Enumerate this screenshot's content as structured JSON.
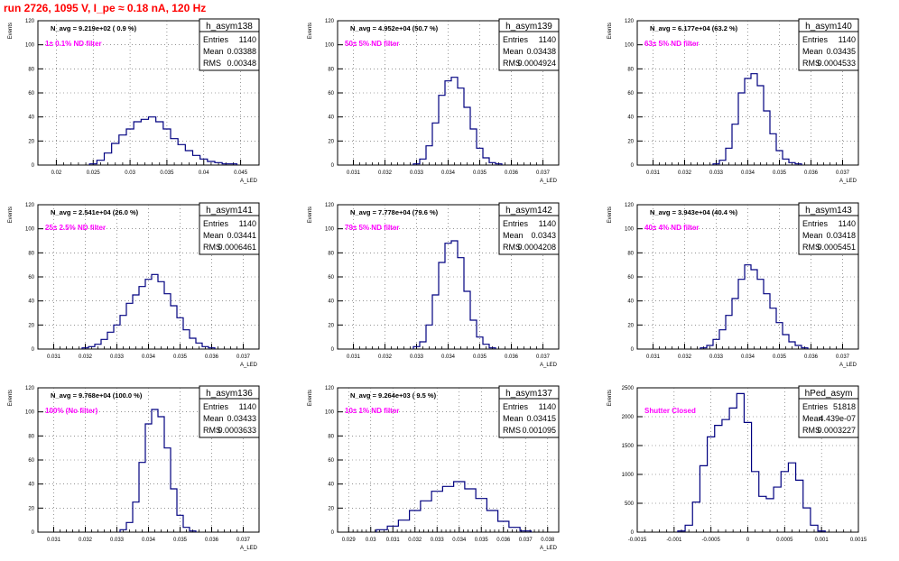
{
  "title": "run 2726,  1095 V, I_pe ≈ 0.18 nA, 120 Hz",
  "colors": {
    "title": "#ff0000",
    "line": "#000080",
    "note": "#ff00ff"
  },
  "chart_data": [
    {
      "type": "histogram",
      "hist_name": "h_asym138",
      "stats": {
        "entries": "1140",
        "mean": "0.03388",
        "rms": "0.00348"
      },
      "navg": "N_avg = 9.219e+02 ( 0.9 %)",
      "note": "1± 0.1% ND filter",
      "xlabel": "A_LED",
      "ylabel": "Events",
      "xlim": [
        0.0175,
        0.0475
      ],
      "ylim": [
        0,
        120
      ],
      "xticks": [
        "0.02",
        "0.025",
        "0.03",
        "0.035",
        "0.04",
        "0.045"
      ],
      "yticks": [
        "0",
        "20",
        "40",
        "60",
        "80",
        "100",
        "120"
      ],
      "grid": true,
      "x": [
        0.025,
        0.026,
        0.027,
        0.028,
        0.029,
        0.03,
        0.031,
        0.032,
        0.033,
        0.034,
        0.035,
        0.036,
        0.037,
        0.038,
        0.039,
        0.04,
        0.041,
        0.042,
        0.043,
        0.044
      ],
      "values": [
        1,
        4,
        10,
        18,
        25,
        30,
        36,
        38,
        40,
        36,
        30,
        22,
        17,
        12,
        8,
        5,
        3,
        2,
        1,
        1
      ]
    },
    {
      "type": "histogram",
      "hist_name": "h_asym139",
      "stats": {
        "entries": "1140",
        "mean": "0.03438",
        "rms": "0.0004924"
      },
      "navg": "N_avg = 4.952e+04 (50.7 %)",
      "note": "50± 5% ND filter",
      "xlabel": "A_LED",
      "ylabel": "Events",
      "xlim": [
        0.0305,
        0.0375
      ],
      "ylim": [
        0,
        120
      ],
      "xticks": [
        "0.031",
        "0.032",
        "0.033",
        "0.034",
        "0.035",
        "0.036",
        "0.037"
      ],
      "yticks": [
        "0",
        "20",
        "40",
        "60",
        "80",
        "100",
        "120"
      ],
      "grid": true,
      "x": [
        0.033,
        0.0332,
        0.0334,
        0.0336,
        0.0338,
        0.034,
        0.0342,
        0.0344,
        0.0346,
        0.0348,
        0.035,
        0.0352,
        0.0354,
        0.0356
      ],
      "values": [
        1,
        5,
        16,
        35,
        58,
        70,
        73,
        64,
        48,
        30,
        14,
        6,
        2,
        1
      ]
    },
    {
      "type": "histogram",
      "hist_name": "h_asym140",
      "stats": {
        "entries": "1140",
        "mean": "0.03435",
        "rms": "0.0004533"
      },
      "navg": "N_avg = 6.177e+04 (63.2 %)",
      "note": "63± 5% ND filter",
      "xlabel": "A_LED",
      "ylabel": "Events",
      "xlim": [
        0.0305,
        0.0375
      ],
      "ylim": [
        0,
        120
      ],
      "xticks": [
        "0.031",
        "0.032",
        "0.033",
        "0.034",
        "0.035",
        "0.036",
        "0.037"
      ],
      "yticks": [
        "0",
        "20",
        "40",
        "60",
        "80",
        "100",
        "120"
      ],
      "grid": true,
      "x": [
        0.033,
        0.0332,
        0.0334,
        0.0336,
        0.0338,
        0.034,
        0.0342,
        0.0344,
        0.0346,
        0.0348,
        0.035,
        0.0352,
        0.0354,
        0.0356
      ],
      "values": [
        1,
        4,
        14,
        34,
        60,
        72,
        76,
        66,
        45,
        26,
        12,
        5,
        2,
        1
      ]
    },
    {
      "type": "histogram",
      "hist_name": "h_asym141",
      "stats": {
        "entries": "1140",
        "mean": "0.03441",
        "rms": "0.0006461"
      },
      "navg": "N_avg = 2.541e+04 (26.0 %)",
      "note": "25± 2.5% ND filter",
      "xlabel": "A_LED",
      "ylabel": "Events",
      "xlim": [
        0.0305,
        0.0375
      ],
      "ylim": [
        0,
        120
      ],
      "xticks": [
        "0.031",
        "0.032",
        "0.033",
        "0.034",
        "0.035",
        "0.036",
        "0.037"
      ],
      "yticks": [
        "0",
        "20",
        "40",
        "60",
        "80",
        "100",
        "120"
      ],
      "grid": true,
      "x": [
        0.032,
        0.0322,
        0.0324,
        0.0326,
        0.0328,
        0.033,
        0.0332,
        0.0334,
        0.0336,
        0.0338,
        0.034,
        0.0342,
        0.0344,
        0.0346,
        0.0348,
        0.035,
        0.0352,
        0.0354,
        0.0356,
        0.0358,
        0.036
      ],
      "values": [
        1,
        2,
        4,
        8,
        14,
        20,
        28,
        38,
        45,
        52,
        58,
        62,
        56,
        46,
        36,
        26,
        16,
        9,
        5,
        2,
        1
      ]
    },
    {
      "type": "histogram",
      "hist_name": "h_asym142",
      "stats": {
        "entries": "1140",
        "mean": "0.0343",
        "rms": "0.0004208"
      },
      "navg": "N_avg = 7.778e+04 (79.6 %)",
      "note": "79± 5% ND filter",
      "xlabel": "A_LED",
      "ylabel": "Events",
      "xlim": [
        0.0305,
        0.0375
      ],
      "ylim": [
        0,
        120
      ],
      "xticks": [
        "0.031",
        "0.032",
        "0.033",
        "0.034",
        "0.035",
        "0.036",
        "0.037"
      ],
      "yticks": [
        "0",
        "20",
        "40",
        "60",
        "80",
        "100",
        "120"
      ],
      "grid": true,
      "x": [
        0.033,
        0.0332,
        0.0334,
        0.0336,
        0.0338,
        0.034,
        0.0342,
        0.0344,
        0.0346,
        0.0348,
        0.035,
        0.0352,
        0.0354
      ],
      "values": [
        2,
        6,
        20,
        45,
        72,
        88,
        90,
        76,
        48,
        24,
        10,
        4,
        1
      ]
    },
    {
      "type": "histogram",
      "hist_name": "h_asym143",
      "stats": {
        "entries": "1140",
        "mean": "0.03418",
        "rms": "0.0005451"
      },
      "navg": "N_avg = 3.943e+04 (40.4 %)",
      "note": "40± 4% ND filter",
      "xlabel": "A_LED",
      "ylabel": "Events",
      "xlim": [
        0.0305,
        0.0375
      ],
      "ylim": [
        0,
        120
      ],
      "xticks": [
        "0.031",
        "0.032",
        "0.033",
        "0.034",
        "0.035",
        "0.036",
        "0.037"
      ],
      "yticks": [
        "0",
        "20",
        "40",
        "60",
        "80",
        "100",
        "120"
      ],
      "grid": true,
      "x": [
        0.0326,
        0.0328,
        0.033,
        0.0332,
        0.0334,
        0.0336,
        0.0338,
        0.034,
        0.0342,
        0.0344,
        0.0346,
        0.0348,
        0.035,
        0.0352,
        0.0354,
        0.0356,
        0.0358
      ],
      "values": [
        1,
        3,
        8,
        16,
        28,
        42,
        58,
        70,
        66,
        58,
        46,
        34,
        22,
        12,
        6,
        3,
        1
      ]
    },
    {
      "type": "histogram",
      "hist_name": "h_asym136",
      "stats": {
        "entries": "1140",
        "mean": "0.03433",
        "rms": "0.0003633"
      },
      "navg": "N_avg = 9.768e+04 (100.0 %)",
      "note": "100% (No filter)",
      "xlabel": "A_LED",
      "ylabel": "Events",
      "xlim": [
        0.0305,
        0.0375
      ],
      "ylim": [
        0,
        120
      ],
      "xticks": [
        "0.031",
        "0.032",
        "0.033",
        "0.034",
        "0.035",
        "0.036",
        "0.037"
      ],
      "yticks": [
        "0",
        "20",
        "40",
        "60",
        "80",
        "100",
        "120"
      ],
      "grid": true,
      "x": [
        0.0332,
        0.0334,
        0.0336,
        0.0338,
        0.034,
        0.0342,
        0.0344,
        0.0346,
        0.0348,
        0.035,
        0.0352,
        0.0354
      ],
      "values": [
        2,
        8,
        25,
        58,
        90,
        102,
        96,
        70,
        36,
        14,
        4,
        1
      ]
    },
    {
      "type": "histogram",
      "hist_name": "h_asym137",
      "stats": {
        "entries": "1140",
        "mean": "0.03415",
        "rms": "0.001095"
      },
      "navg": "N_avg = 9.264e+03 ( 9.5 %)",
      "note": "10± 1% ND filter",
      "xlabel": "A_LED",
      "ylabel": "Events",
      "xlim": [
        0.0285,
        0.0385
      ],
      "ylim": [
        0,
        120
      ],
      "xticks": [
        "0.029",
        "0.03",
        "0.031",
        "0.032",
        "0.033",
        "0.034",
        "0.035",
        "0.036",
        "0.037",
        "0.038"
      ],
      "yticks": [
        "0",
        "20",
        "40",
        "60",
        "80",
        "100",
        "120"
      ],
      "grid": true,
      "x": [
        0.0305,
        0.031,
        0.0315,
        0.032,
        0.0325,
        0.033,
        0.0335,
        0.034,
        0.0345,
        0.035,
        0.0355,
        0.036,
        0.0365,
        0.037
      ],
      "values": [
        2,
        5,
        10,
        18,
        26,
        34,
        38,
        42,
        36,
        28,
        18,
        9,
        4,
        1
      ]
    },
    {
      "type": "histogram",
      "hist_name": "hPed_asym",
      "stats": {
        "entries": "51818",
        "mean": "4.439e-07",
        "rms": "0.0003227"
      },
      "note": "Shutter Closed",
      "xlabel": "",
      "ylabel": "Events",
      "xlim": [
        -0.0015,
        0.0015
      ],
      "ylim": [
        0,
        2500
      ],
      "xticks": [
        "-0.0015",
        "-0.001",
        "-0.0005",
        "0",
        "0.0005",
        "0.001",
        "0.0015"
      ],
      "yticks": [
        "0",
        "500",
        "1000",
        "1500",
        "2000",
        "2500"
      ],
      "grid": true,
      "x": [
        -0.0009,
        -0.0008,
        -0.0007,
        -0.0006,
        -0.0005,
        -0.0004,
        -0.0003,
        -0.0002,
        -0.0001,
        0.0,
        0.0001,
        0.0002,
        0.0003,
        0.0004,
        0.0005,
        0.0006,
        0.0007,
        0.0008,
        0.0009,
        0.001
      ],
      "values": [
        20,
        120,
        520,
        1150,
        1650,
        1850,
        1950,
        2150,
        2400,
        1900,
        1050,
        620,
        580,
        780,
        1050,
        1200,
        900,
        420,
        120,
        20
      ]
    }
  ]
}
